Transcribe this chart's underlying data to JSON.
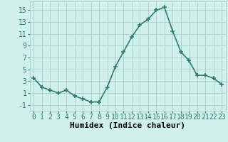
{
  "x": [
    0,
    1,
    2,
    3,
    4,
    5,
    6,
    7,
    8,
    9,
    10,
    11,
    12,
    13,
    14,
    15,
    16,
    17,
    18,
    19,
    20,
    21,
    22,
    23
  ],
  "y": [
    3.5,
    2.0,
    1.5,
    1.0,
    1.5,
    0.5,
    0.0,
    -0.5,
    -0.5,
    2.0,
    5.5,
    8.0,
    10.5,
    12.5,
    13.5,
    15.0,
    15.5,
    11.5,
    8.0,
    6.5,
    4.0,
    4.0,
    3.5,
    2.5
  ],
  "line_color": "#2e7d6e",
  "marker": "+",
  "marker_size": 4,
  "marker_linewidth": 1.2,
  "bg_color": "#cff0ec",
  "grid_color": "#aacec9",
  "xlabel": "Humidex (Indice chaleur)",
  "xlabel_fontsize": 8,
  "yticks": [
    -1,
    1,
    3,
    5,
    7,
    9,
    11,
    13,
    15
  ],
  "xticks": [
    0,
    1,
    2,
    3,
    4,
    5,
    6,
    7,
    8,
    9,
    10,
    11,
    12,
    13,
    14,
    15,
    16,
    17,
    18,
    19,
    20,
    21,
    22,
    23
  ],
  "xlim": [
    -0.5,
    23.5
  ],
  "ylim": [
    -2.0,
    16.5
  ],
  "tick_fontsize": 7,
  "linewidth": 1.2
}
